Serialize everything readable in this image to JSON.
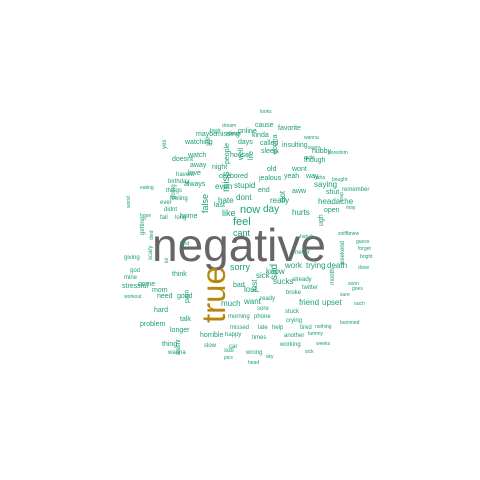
{
  "colors": {
    "big": "#666666",
    "gold": "#b8860b",
    "teal": "#1b9e77"
  },
  "words": [
    {
      "text": "negative",
      "color": "big"
    },
    {
      "text": "true",
      "color": "gold"
    },
    {
      "text": "now",
      "color": "teal"
    },
    {
      "text": "day",
      "color": "teal"
    },
    {
      "text": "feel",
      "color": "teal"
    },
    {
      "text": "like",
      "color": "teal"
    },
    {
      "text": "cant",
      "color": "teal"
    },
    {
      "text": "dont",
      "color": "teal"
    },
    {
      "text": "hate",
      "color": "teal"
    },
    {
      "text": "sorry",
      "color": "teal"
    },
    {
      "text": "miss",
      "color": "teal"
    },
    {
      "text": "false",
      "color": "teal"
    },
    {
      "text": "sad",
      "color": "teal"
    },
    {
      "text": "work",
      "color": "teal"
    },
    {
      "text": "trying",
      "color": "teal"
    },
    {
      "text": "death",
      "color": "teal"
    },
    {
      "text": "just",
      "color": "teal"
    },
    {
      "text": "want",
      "color": "teal"
    },
    {
      "text": "lost",
      "color": "teal"
    },
    {
      "text": "much",
      "color": "teal"
    },
    {
      "text": "sick",
      "color": "teal"
    },
    {
      "text": "bad",
      "color": "teal"
    },
    {
      "text": "sucks",
      "color": "teal"
    },
    {
      "text": "know",
      "color": "teal"
    },
    {
      "text": "friend",
      "color": "teal"
    },
    {
      "text": "upset",
      "color": "teal"
    },
    {
      "text": "got",
      "color": "teal"
    },
    {
      "text": "really",
      "color": "teal"
    },
    {
      "text": "hurts",
      "color": "teal"
    },
    {
      "text": "saying",
      "color": "teal"
    },
    {
      "text": "headache",
      "color": "teal"
    },
    {
      "text": "open",
      "color": "teal"
    },
    {
      "text": "even",
      "color": "teal"
    },
    {
      "text": "stupid",
      "color": "teal"
    },
    {
      "text": "always",
      "color": "teal"
    },
    {
      "text": "last",
      "color": "teal"
    },
    {
      "text": "home",
      "color": "teal"
    },
    {
      "text": "love",
      "color": "teal"
    },
    {
      "text": "away",
      "color": "teal"
    },
    {
      "text": "watch",
      "color": "teal"
    },
    {
      "text": "doesnt",
      "color": "teal"
    },
    {
      "text": "watching",
      "color": "teal"
    },
    {
      "text": "maybe",
      "color": "teal"
    },
    {
      "text": "missing",
      "color": "teal"
    },
    {
      "text": "online",
      "color": "teal"
    },
    {
      "text": "days",
      "color": "teal"
    },
    {
      "text": "called",
      "color": "teal"
    },
    {
      "text": "kinda",
      "color": "teal"
    },
    {
      "text": "cause",
      "color": "teal"
    },
    {
      "text": "favorite",
      "color": "teal"
    },
    {
      "text": "insulting",
      "color": "teal"
    },
    {
      "text": "sleep",
      "color": "teal"
    },
    {
      "text": "night",
      "color": "teal"
    },
    {
      "text": "house",
      "color": "teal"
    },
    {
      "text": "old",
      "color": "teal"
    },
    {
      "text": "wont",
      "color": "teal"
    },
    {
      "text": "one",
      "color": "teal"
    },
    {
      "text": "bored",
      "color": "teal"
    },
    {
      "text": "jealous",
      "color": "teal"
    },
    {
      "text": "yeah",
      "color": "teal"
    },
    {
      "text": "way",
      "color": "teal"
    },
    {
      "text": "hubby",
      "color": "teal"
    },
    {
      "text": "though",
      "color": "teal"
    },
    {
      "text": "shut",
      "color": "teal"
    },
    {
      "text": "end",
      "color": "teal"
    },
    {
      "text": "aww",
      "color": "teal"
    },
    {
      "text": "gonna",
      "color": "teal"
    },
    {
      "text": "people",
      "color": "teal"
    },
    {
      "text": "life",
      "color": "teal"
    },
    {
      "text": "well",
      "color": "teal"
    },
    {
      "text": "ugh",
      "color": "teal"
    },
    {
      "text": "havent",
      "color": "teal"
    },
    {
      "text": "birthday",
      "color": "teal"
    },
    {
      "text": "getting",
      "color": "teal"
    },
    {
      "text": "ever",
      "color": "teal"
    },
    {
      "text": "things",
      "color": "teal"
    },
    {
      "text": "didnt",
      "color": "teal"
    },
    {
      "text": "feeling",
      "color": "teal"
    },
    {
      "text": "yes",
      "color": "teal"
    },
    {
      "text": "still",
      "color": "teal"
    },
    {
      "text": "going",
      "color": "teal"
    },
    {
      "text": "fail",
      "color": "teal"
    },
    {
      "text": "long",
      "color": "teal"
    },
    {
      "text": "god",
      "color": "teal"
    },
    {
      "text": "giving",
      "color": "teal"
    },
    {
      "text": "stressful",
      "color": "teal"
    },
    {
      "text": "mine",
      "color": "teal"
    },
    {
      "text": "scary",
      "color": "teal"
    },
    {
      "text": "come",
      "color": "teal"
    },
    {
      "text": "mom",
      "color": "teal"
    },
    {
      "text": "think",
      "color": "teal"
    },
    {
      "text": "need",
      "color": "teal"
    },
    {
      "text": "good",
      "color": "teal"
    },
    {
      "text": "hard",
      "color": "teal"
    },
    {
      "text": "pain",
      "color": "teal"
    },
    {
      "text": "problem",
      "color": "teal"
    },
    {
      "text": "talk",
      "color": "teal"
    },
    {
      "text": "longer",
      "color": "teal"
    },
    {
      "text": "thing",
      "color": "teal"
    },
    {
      "text": "wasnt",
      "color": "teal"
    },
    {
      "text": "horrible",
      "color": "teal"
    },
    {
      "text": "wanna",
      "color": "teal"
    },
    {
      "text": "slow",
      "color": "teal"
    },
    {
      "text": "sob",
      "color": "teal"
    },
    {
      "text": "happy",
      "color": "teal"
    },
    {
      "text": "wrong",
      "color": "teal"
    },
    {
      "text": "missed",
      "color": "teal"
    },
    {
      "text": "help",
      "color": "teal"
    },
    {
      "text": "late",
      "color": "teal"
    },
    {
      "text": "morning",
      "color": "teal"
    },
    {
      "text": "phone",
      "color": "teal"
    },
    {
      "text": "car",
      "color": "teal"
    },
    {
      "text": "times",
      "color": "teal"
    },
    {
      "text": "another",
      "color": "teal"
    },
    {
      "text": "working",
      "color": "teal"
    },
    {
      "text": "crying",
      "color": "teal"
    },
    {
      "text": "stuck",
      "color": "teal"
    },
    {
      "text": "broke",
      "color": "teal"
    },
    {
      "text": "twitter",
      "color": "teal"
    },
    {
      "text": "tired",
      "color": "teal"
    },
    {
      "text": "already",
      "color": "teal"
    },
    {
      "text": "never",
      "color": "teal"
    },
    {
      "text": "weekend",
      "color": "teal"
    },
    {
      "text": "month",
      "color": "teal"
    },
    {
      "text": "soon",
      "color": "teal"
    },
    {
      "text": "sure",
      "color": "teal"
    },
    {
      "text": "remember",
      "color": "teal"
    },
    {
      "text": "boredom",
      "color": "teal"
    },
    {
      "text": "bought",
      "color": "teal"
    },
    {
      "text": "crap",
      "color": "teal"
    },
    {
      "text": "may",
      "color": "teal"
    },
    {
      "text": "haha",
      "color": "teal"
    },
    {
      "text": "wanna",
      "color": "teal"
    },
    {
      "text": "scary",
      "color": "teal"
    },
    {
      "text": "looks",
      "color": "teal"
    },
    {
      "text": "dream",
      "color": "teal"
    },
    {
      "text": "book",
      "color": "teal"
    },
    {
      "text": "almost",
      "color": "teal"
    },
    {
      "text": "weeks",
      "color": "teal"
    },
    {
      "text": "tummy",
      "color": "teal"
    },
    {
      "text": "pics",
      "color": "teal"
    },
    {
      "text": "head",
      "color": "teal"
    },
    {
      "text": "sky",
      "color": "teal"
    },
    {
      "text": "eating",
      "color": "teal"
    },
    {
      "text": "hope",
      "color": "teal"
    },
    {
      "text": "worst",
      "color": "teal"
    },
    {
      "text": "died",
      "color": "teal"
    },
    {
      "text": "lol",
      "color": "teal"
    },
    {
      "text": "ready",
      "color": "teal"
    },
    {
      "text": "sore",
      "color": "teal"
    },
    {
      "text": "kind",
      "color": "teal"
    },
    {
      "text": "guess",
      "color": "teal"
    },
    {
      "text": "done",
      "color": "teal"
    },
    {
      "text": "workout",
      "color": "teal"
    },
    {
      "text": "hahah",
      "color": "teal"
    },
    {
      "text": "quite",
      "color": "teal"
    },
    {
      "text": "bummed",
      "color": "teal"
    },
    {
      "text": "sick",
      "color": "teal"
    },
    {
      "text": "nothing",
      "color": "teal"
    },
    {
      "text": "forget",
      "color": "teal"
    },
    {
      "text": "bright",
      "color": "teal"
    },
    {
      "text": "sniffle",
      "color": "teal"
    },
    {
      "text": "new",
      "color": "teal"
    },
    {
      "text": "ouch",
      "color": "teal"
    },
    {
      "text": "goes",
      "color": "teal"
    }
  ]
}
